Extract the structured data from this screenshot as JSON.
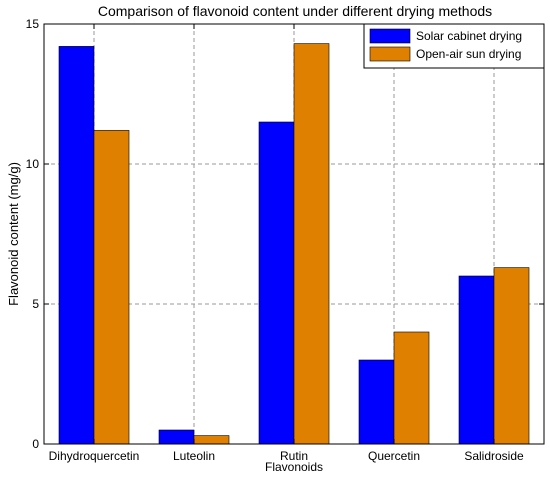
{
  "chart_data": {
    "type": "bar",
    "title": "Comparison of flavonoid content under different drying methods",
    "xlabel": "Flavonoids",
    "ylabel": "Flavonoid content (mg/g)",
    "categories": [
      "Dihydroquercetin",
      "Luteolin",
      "Rutin",
      "Quercetin",
      "Salidroside"
    ],
    "series": [
      {
        "name": "Solar cabinet drying",
        "color": "#0000ff",
        "values": [
          14.2,
          0.5,
          11.5,
          3.0,
          6.0
        ]
      },
      {
        "name": "Open-air sun drying",
        "color": "#e08000",
        "values": [
          11.2,
          0.3,
          14.3,
          4.0,
          6.3
        ]
      }
    ],
    "ylim": [
      0,
      15
    ],
    "yticks": [
      0,
      5,
      10,
      15
    ],
    "grid": true,
    "legend_position": "top-right"
  }
}
